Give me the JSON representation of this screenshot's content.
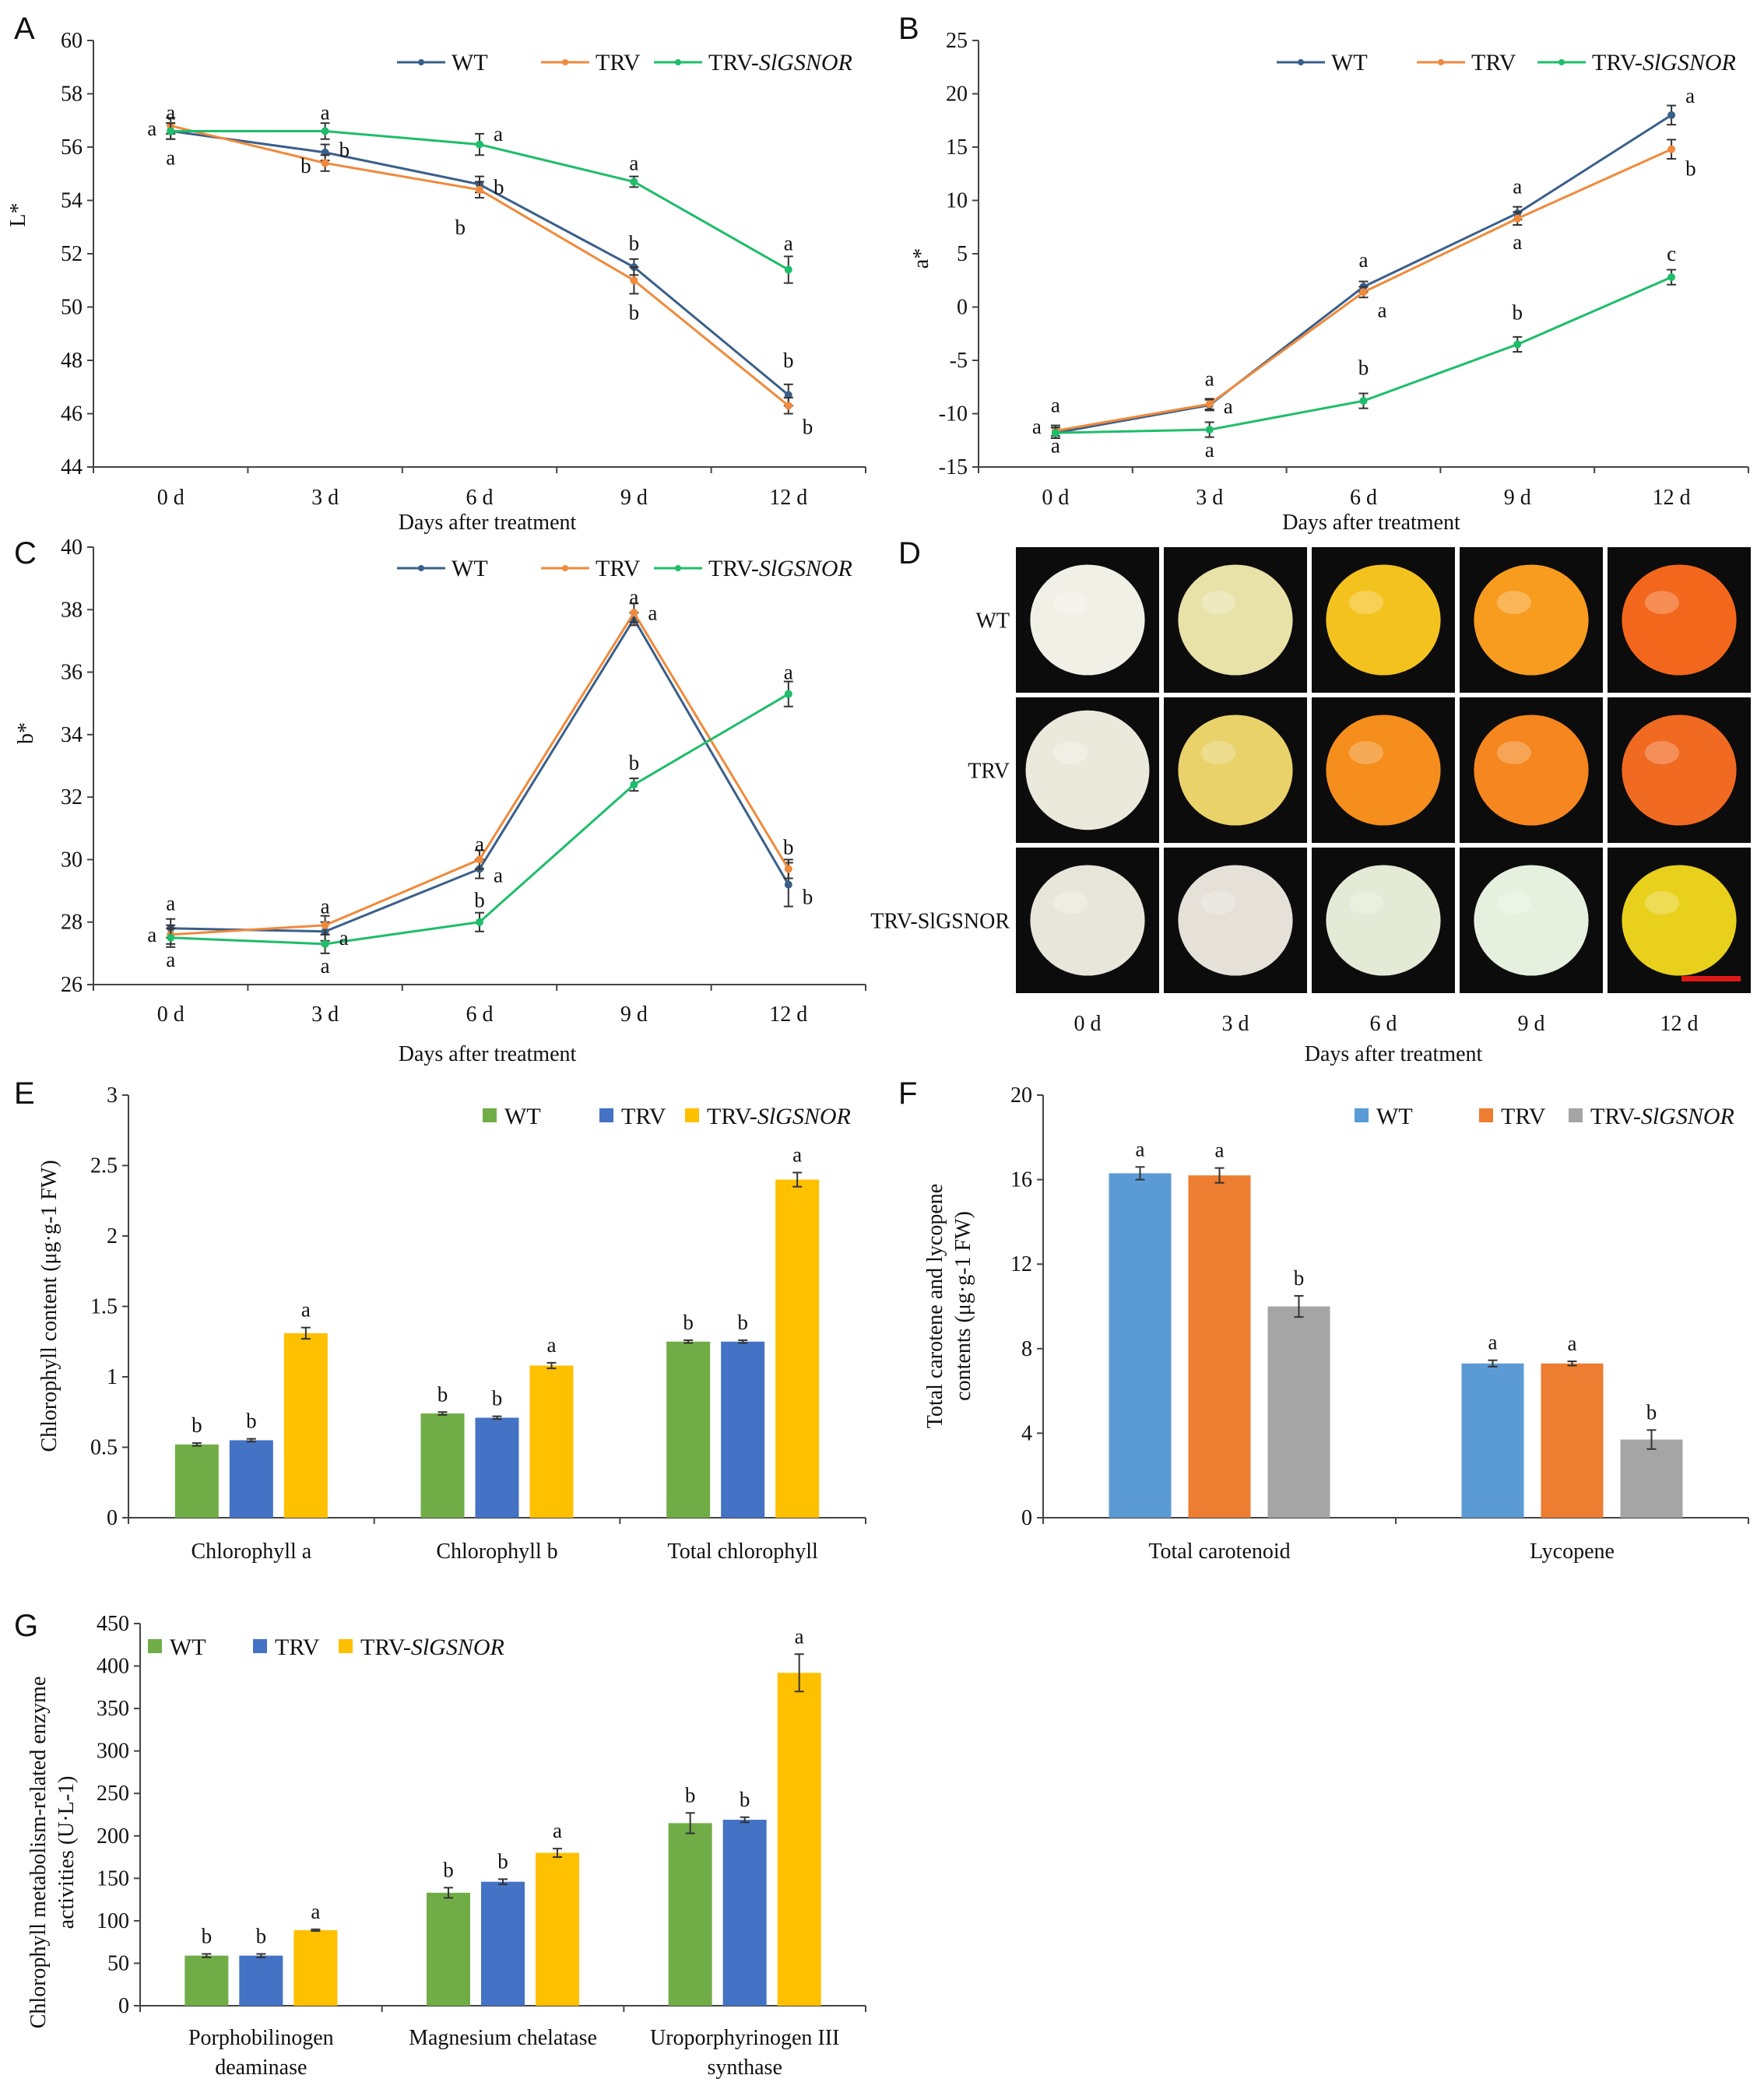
{
  "figure": {
    "panels": [
      "A",
      "B",
      "C",
      "D",
      "E",
      "F",
      "G"
    ],
    "photo_panel": {
      "letter": "D",
      "rows": [
        "WT",
        "TRV",
        "TRV-SlGSNOR"
      ],
      "columns": [
        "0 d",
        "3 d",
        "6 d",
        "9 d",
        "12 d"
      ],
      "xlabel": "Days after treatment",
      "colors": [
        [
          "#f1f0e6",
          "#e9e2a8",
          "#f4c21e",
          "#f89c20",
          "#f2671c"
        ],
        [
          "#ebe8dc",
          "#ead26a",
          "#f58e1c",
          "#f6861f",
          "#f06a22"
        ],
        [
          "#e8e6da",
          "#e5e0d8",
          "#e4ead6",
          "#e6f0de",
          "#e8d01c"
        ]
      ]
    }
  },
  "chart_data": [
    {
      "panel": "A",
      "type": "line",
      "categories": [
        "0 d",
        "3 d",
        "6 d",
        "9 d",
        "12 d"
      ],
      "xlabel": "Days after treatment",
      "ylabel": "L*",
      "ylim": [
        44,
        60
      ],
      "yticks": [
        44,
        46,
        48,
        50,
        52,
        54,
        56,
        58,
        60
      ],
      "series": [
        {
          "name": "WT",
          "color": "#3a5f8a",
          "values": [
            56.6,
            55.8,
            54.6,
            51.5,
            46.7
          ],
          "errors": [
            0.3,
            0.3,
            0.3,
            0.3,
            0.4
          ]
        },
        {
          "name": "TRV",
          "color": "#ef8a3c",
          "values": [
            56.8,
            55.4,
            54.4,
            51.0,
            46.3
          ],
          "errors": [
            0.3,
            0.3,
            0.3,
            0.5,
            0.3
          ]
        },
        {
          "name": "TRV-SlGSNOR",
          "color": "#1ebd6a",
          "values": [
            56.6,
            56.6,
            56.1,
            54.7,
            51.4
          ],
          "errors": [
            0.3,
            0.3,
            0.4,
            0.2,
            0.5
          ]
        }
      ],
      "annotations": [
        {
          "i": 0,
          "v": 57.3,
          "t": "a",
          "side": "top"
        },
        {
          "i": 0,
          "v": 56.7,
          "t": "a",
          "side": "left"
        },
        {
          "i": 0,
          "v": 55.6,
          "t": "a",
          "side": "bottom"
        },
        {
          "i": 1,
          "v": 57.3,
          "t": "a",
          "side": "top"
        },
        {
          "i": 1,
          "v": 55.3,
          "t": "b",
          "side": "left"
        },
        {
          "i": 1,
          "v": 55.9,
          "t": "b",
          "side": "right"
        },
        {
          "i": 2,
          "v": 56.5,
          "t": "a",
          "side": "right"
        },
        {
          "i": 2,
          "v": 54.5,
          "t": "b",
          "side": "right"
        },
        {
          "i": 2,
          "v": 53.0,
          "t": "b",
          "side": "left"
        },
        {
          "i": 3,
          "v": 55.4,
          "t": "a",
          "side": "top"
        },
        {
          "i": 3,
          "v": 52.4,
          "t": "b",
          "side": "top"
        },
        {
          "i": 3,
          "v": 49.8,
          "t": "b",
          "side": "bottom"
        },
        {
          "i": 4,
          "v": 52.4,
          "t": "a",
          "side": "top"
        },
        {
          "i": 4,
          "v": 48.0,
          "t": "b",
          "side": "top"
        },
        {
          "i": 4,
          "v": 45.5,
          "t": "b",
          "side": "right"
        }
      ]
    },
    {
      "panel": "B",
      "type": "line",
      "categories": [
        "0 d",
        "3 d",
        "6 d",
        "9 d",
        "12 d"
      ],
      "xlabel": "Days after treatment",
      "ylabel": "a*",
      "ylim": [
        -15,
        25
      ],
      "yticks": [
        -15,
        -10,
        -5,
        0,
        5,
        10,
        15,
        20,
        25
      ],
      "series": [
        {
          "name": "WT",
          "color": "#3a5f8a",
          "values": [
            -11.8,
            -9.2,
            1.9,
            8.8,
            18.0
          ],
          "errors": [
            0.5,
            0.5,
            0.5,
            0.6,
            0.9
          ]
        },
        {
          "name": "TRV",
          "color": "#ef8a3c",
          "values": [
            -11.6,
            -9.1,
            1.4,
            8.3,
            14.8
          ],
          "errors": [
            0.5,
            0.5,
            0.5,
            0.6,
            0.9
          ]
        },
        {
          "name": "TRV-SlGSNOR",
          "color": "#1ebd6a",
          "values": [
            -11.8,
            -11.5,
            -8.8,
            -3.5,
            2.8
          ],
          "errors": [
            0.5,
            0.7,
            0.7,
            0.7,
            0.7
          ]
        }
      ],
      "annotations": [
        {
          "i": 0,
          "v": -9.2,
          "t": "a",
          "side": "top"
        },
        {
          "i": 0,
          "v": -11.2,
          "t": "a",
          "side": "left"
        },
        {
          "i": 0,
          "v": -13.0,
          "t": "a",
          "side": "bottom"
        },
        {
          "i": 1,
          "v": -6.7,
          "t": "a",
          "side": "top"
        },
        {
          "i": 1,
          "v": -9.3,
          "t": "a",
          "side": "right"
        },
        {
          "i": 1,
          "v": -13.4,
          "t": "a",
          "side": "bottom"
        },
        {
          "i": 2,
          "v": 4.4,
          "t": "a",
          "side": "top"
        },
        {
          "i": 2,
          "v": -0.3,
          "t": "a",
          "side": "right"
        },
        {
          "i": 2,
          "v": -5.7,
          "t": "b",
          "side": "top"
        },
        {
          "i": 3,
          "v": 11.3,
          "t": "a",
          "side": "top"
        },
        {
          "i": 3,
          "v": 6.1,
          "t": "a",
          "side": "bottom"
        },
        {
          "i": 3,
          "v": -0.5,
          "t": "b",
          "side": "top"
        },
        {
          "i": 4,
          "v": 19.8,
          "t": "a",
          "side": "right"
        },
        {
          "i": 4,
          "v": 13.0,
          "t": "b",
          "side": "right"
        },
        {
          "i": 4,
          "v": 5.0,
          "t": "c",
          "side": "top"
        }
      ]
    },
    {
      "panel": "C",
      "type": "line",
      "categories": [
        "0 d",
        "3 d",
        "6 d",
        "9 d",
        "12 d"
      ],
      "xlabel": "Days after treatment",
      "ylabel": "b*",
      "ylim": [
        26,
        40
      ],
      "yticks": [
        26,
        28,
        30,
        32,
        34,
        36,
        38,
        40
      ],
      "series": [
        {
          "name": "WT",
          "color": "#3a5f8a",
          "values": [
            27.8,
            27.7,
            29.7,
            37.7,
            29.2
          ],
          "errors": [
            0.3,
            0.3,
            0.3,
            0.2,
            0.7
          ]
        },
        {
          "name": "TRV",
          "color": "#ef8a3c",
          "values": [
            27.6,
            27.9,
            30.0,
            37.9,
            29.7
          ],
          "errors": [
            0.3,
            0.3,
            0.3,
            0.3,
            0.3
          ]
        },
        {
          "name": "TRV-SlGSNOR",
          "color": "#1ebd6a",
          "values": [
            27.5,
            27.3,
            28.0,
            32.4,
            35.3
          ],
          "errors": [
            0.3,
            0.3,
            0.3,
            0.2,
            0.4
          ]
        }
      ],
      "annotations": [
        {
          "i": 0,
          "v": 28.6,
          "t": "a",
          "side": "top"
        },
        {
          "i": 0,
          "v": 27.6,
          "t": "a",
          "side": "left"
        },
        {
          "i": 0,
          "v": 26.8,
          "t": "a",
          "side": "bottom"
        },
        {
          "i": 1,
          "v": 28.5,
          "t": "a",
          "side": "top"
        },
        {
          "i": 1,
          "v": 27.5,
          "t": "a",
          "side": "right"
        },
        {
          "i": 1,
          "v": 26.6,
          "t": "a",
          "side": "bottom"
        },
        {
          "i": 2,
          "v": 30.5,
          "t": "a",
          "side": "top"
        },
        {
          "i": 2,
          "v": 29.5,
          "t": "a",
          "side": "right"
        },
        {
          "i": 2,
          "v": 28.7,
          "t": "b",
          "side": "top"
        },
        {
          "i": 3,
          "v": 38.4,
          "t": "a",
          "side": "top"
        },
        {
          "i": 3,
          "v": 37.9,
          "t": "a",
          "side": "right"
        },
        {
          "i": 3,
          "v": 33.1,
          "t": "b",
          "side": "top"
        },
        {
          "i": 4,
          "v": 36.0,
          "t": "a",
          "side": "top"
        },
        {
          "i": 4,
          "v": 30.4,
          "t": "b",
          "side": "top"
        },
        {
          "i": 4,
          "v": 28.8,
          "t": "b",
          "side": "right"
        }
      ]
    },
    {
      "panel": "E",
      "type": "bar",
      "categories": [
        "Chlorophyll a",
        "Chlorophyll b",
        "Total chlorophyll"
      ],
      "ylabel": "Chlorophyll content (μg·g-1 FW)",
      "ylim": [
        0,
        3
      ],
      "yticks": [
        0,
        0.5,
        1,
        1.5,
        2,
        2.5,
        3
      ],
      "series": [
        {
          "name": "WT",
          "color": "#70ad47",
          "values": [
            0.52,
            0.74,
            1.25
          ],
          "errors": [
            0.01,
            0.01,
            0.01
          ],
          "letters": [
            "b",
            "b",
            "b"
          ]
        },
        {
          "name": "TRV",
          "color": "#4472c4",
          "values": [
            0.55,
            0.71,
            1.25
          ],
          "errors": [
            0.01,
            0.01,
            0.01
          ],
          "letters": [
            "b",
            "b",
            "b"
          ]
        },
        {
          "name": "TRV-SlGSNOR",
          "color": "#ffc000",
          "values": [
            1.31,
            1.08,
            2.4
          ],
          "errors": [
            0.04,
            0.02,
            0.05
          ],
          "letters": [
            "a",
            "a",
            "a"
          ]
        }
      ]
    },
    {
      "panel": "F",
      "type": "bar",
      "categories": [
        "Total carotenoid",
        "Lycopene"
      ],
      "ylabel": "Total carotene and lycopene contents (μg·g-1 FW)",
      "ylim": [
        0,
        20
      ],
      "yticks": [
        0,
        4,
        8,
        12,
        16,
        20
      ],
      "series": [
        {
          "name": "WT",
          "color": "#5b9bd5",
          "values": [
            16.3,
            7.3
          ],
          "errors": [
            0.3,
            0.15
          ],
          "letters": [
            "a",
            "a"
          ]
        },
        {
          "name": "TRV",
          "color": "#ed7d31",
          "values": [
            16.2,
            7.3
          ],
          "errors": [
            0.35,
            0.1
          ],
          "letters": [
            "a",
            "a"
          ]
        },
        {
          "name": "TRV-SlGSNOR",
          "color": "#a5a5a5",
          "values": [
            10.0,
            3.7
          ],
          "errors": [
            0.5,
            0.45
          ],
          "letters": [
            "b",
            "b"
          ]
        }
      ]
    },
    {
      "panel": "G",
      "type": "bar",
      "categories": [
        "Porphobilinogen deaminase",
        "Magnesium chelatase",
        "Uroporphyrinogen III synthase"
      ],
      "ylabel": "Chlorophyll metabolism-related enzyme activities (U·L-1)",
      "ylim": [
        0,
        450
      ],
      "yticks": [
        0,
        50,
        100,
        150,
        200,
        250,
        300,
        350,
        400,
        450
      ],
      "series": [
        {
          "name": "WT",
          "color": "#70ad47",
          "values": [
            59,
            133,
            215
          ],
          "errors": [
            2,
            6,
            12
          ],
          "letters": [
            "b",
            "b",
            "b"
          ]
        },
        {
          "name": "TRV",
          "color": "#4472c4",
          "values": [
            59,
            146,
            219
          ],
          "errors": [
            2,
            3,
            3
          ],
          "letters": [
            "b",
            "b",
            "b"
          ]
        },
        {
          "name": "TRV-SlGSNOR",
          "color": "#ffc000",
          "values": [
            89,
            180,
            392
          ],
          "errors": [
            1,
            5,
            22
          ],
          "letters": [
            "a",
            "a",
            "a"
          ]
        }
      ]
    }
  ]
}
